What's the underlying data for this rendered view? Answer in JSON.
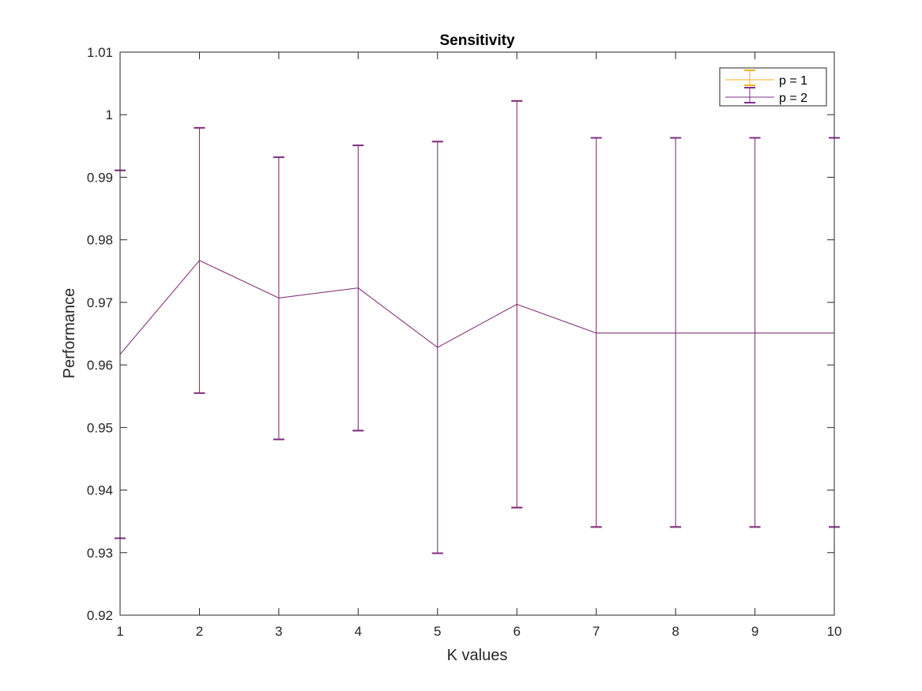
{
  "chart_data": {
    "type": "line",
    "title": "Sensitivity",
    "xlabel": "K values",
    "ylabel": "Performance",
    "xlim": [
      1,
      10
    ],
    "ylim": [
      0.92,
      1.01
    ],
    "xticks": [
      1,
      2,
      3,
      4,
      5,
      6,
      7,
      8,
      9,
      10
    ],
    "xtick_labels": [
      "1",
      "2",
      "3",
      "4",
      "5",
      "6",
      "7",
      "8",
      "9",
      "10"
    ],
    "yticks": [
      0.92,
      0.93,
      0.94,
      0.95,
      0.96,
      0.97,
      0.98,
      0.99,
      1.0,
      1.01
    ],
    "ytick_labels": [
      "0.92",
      "0.93",
      "0.94",
      "0.95",
      "0.96",
      "0.97",
      "0.98",
      "0.99",
      "1",
      "1.01"
    ],
    "grid": false,
    "legend_position": "top-right",
    "series": [
      {
        "name": "p = 1",
        "color": "#EDB120",
        "x": [
          1,
          2,
          3,
          4,
          5,
          6,
          7,
          8,
          9,
          10
        ],
        "y": [
          0.9617,
          0.9767,
          0.9707,
          0.9723,
          0.9628,
          0.9697,
          0.9651,
          0.9651,
          0.9651,
          0.9651
        ],
        "err_low": [
          0.9323,
          0.9555,
          0.9481,
          0.9495,
          0.9299,
          0.9372,
          0.9341,
          0.9341,
          0.9341,
          0.9341
        ],
        "err_high": [
          0.9911,
          0.9979,
          0.9932,
          0.9951,
          0.9957,
          1.0022,
          0.9963,
          0.9963,
          0.9963,
          0.9963
        ]
      },
      {
        "name": "p = 2",
        "color": "#7E2F8E",
        "x": [
          1,
          2,
          3,
          4,
          5,
          6,
          7,
          8,
          9,
          10
        ],
        "y": [
          0.9617,
          0.9767,
          0.9707,
          0.9723,
          0.9628,
          0.9697,
          0.9651,
          0.9651,
          0.9651,
          0.9651
        ],
        "err_low": [
          0.9323,
          0.9555,
          0.9481,
          0.9495,
          0.9299,
          0.9372,
          0.9341,
          0.9341,
          0.9341,
          0.9341
        ],
        "err_high": [
          0.9911,
          0.9979,
          0.9932,
          0.9951,
          0.9957,
          1.0022,
          0.9963,
          0.9963,
          0.9963,
          0.9963
        ]
      }
    ]
  }
}
